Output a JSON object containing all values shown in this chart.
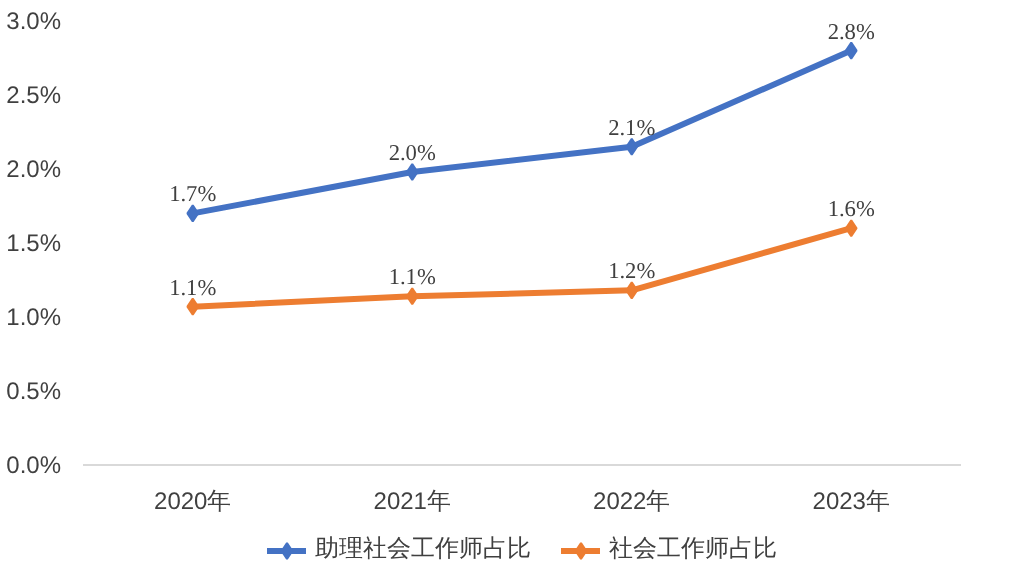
{
  "chart_data": {
    "type": "line",
    "categories": [
      "2020年",
      "2021年",
      "2022年",
      "2023年"
    ],
    "series": [
      {
        "name": "助理社会工作师占比",
        "color": "#4472c4",
        "values": [
          1.7,
          1.98,
          2.15,
          2.8
        ],
        "value_labels": [
          "1.7%",
          "2.0%",
          "2.1%",
          "2.8%"
        ]
      },
      {
        "name": "社会工作师占比",
        "color": "#ed7d31",
        "values": [
          1.07,
          1.14,
          1.18,
          1.6
        ],
        "value_labels": [
          "1.1%",
          "1.1%",
          "1.2%",
          "1.6%"
        ]
      }
    ],
    "ylim": [
      0,
      3
    ],
    "yticks": [
      {
        "value": 0,
        "label": "0.0%"
      },
      {
        "value": 0.5,
        "label": "0.5%"
      },
      {
        "value": 1,
        "label": "1.0%"
      },
      {
        "value": 1.5,
        "label": "1.5%"
      },
      {
        "value": 2,
        "label": "2.0%"
      },
      {
        "value": 2.5,
        "label": "2.5%"
      },
      {
        "value": 3,
        "label": "3.0%"
      }
    ],
    "grid": false,
    "legend": "bottom",
    "marker": "diamond",
    "line_style": "solid"
  }
}
